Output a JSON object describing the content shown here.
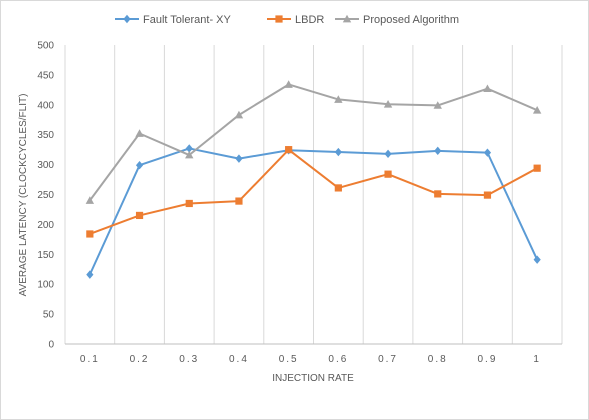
{
  "chart_data": {
    "type": "line",
    "title": "",
    "xlabel": "INJECTION RATE",
    "ylabel": "AVERAGE LATENCY (CLOCKCYCLES/FLIT)",
    "categories": [
      "0.1",
      "0.2",
      "0.3",
      "0.4",
      "0.5",
      "0.6",
      "0.7",
      "0.8",
      "0.9",
      "1"
    ],
    "ylim": [
      0,
      500
    ],
    "yticks": [
      "0",
      "50",
      "100",
      "150",
      "200",
      "250",
      "300",
      "350",
      "400",
      "450",
      "500"
    ],
    "grid": "vertical",
    "legend_position": "top",
    "series": [
      {
        "name": "Fault Tolerant- XY",
        "color": "#5B9BD5",
        "marker": "diamond",
        "values": [
          116,
          299,
          327,
          310,
          324,
          321,
          318,
          323,
          320,
          141
        ]
      },
      {
        "name": "LBDR",
        "color": "#ED7D31",
        "marker": "square",
        "values": [
          184,
          215,
          235,
          239,
          325,
          261,
          284,
          251,
          249,
          294
        ]
      },
      {
        "name": "Proposed Algorithm",
        "color": "#A5A5A5",
        "marker": "triangle",
        "values": [
          240,
          352,
          316,
          383,
          434,
          409,
          401,
          399,
          427,
          391
        ]
      }
    ]
  }
}
